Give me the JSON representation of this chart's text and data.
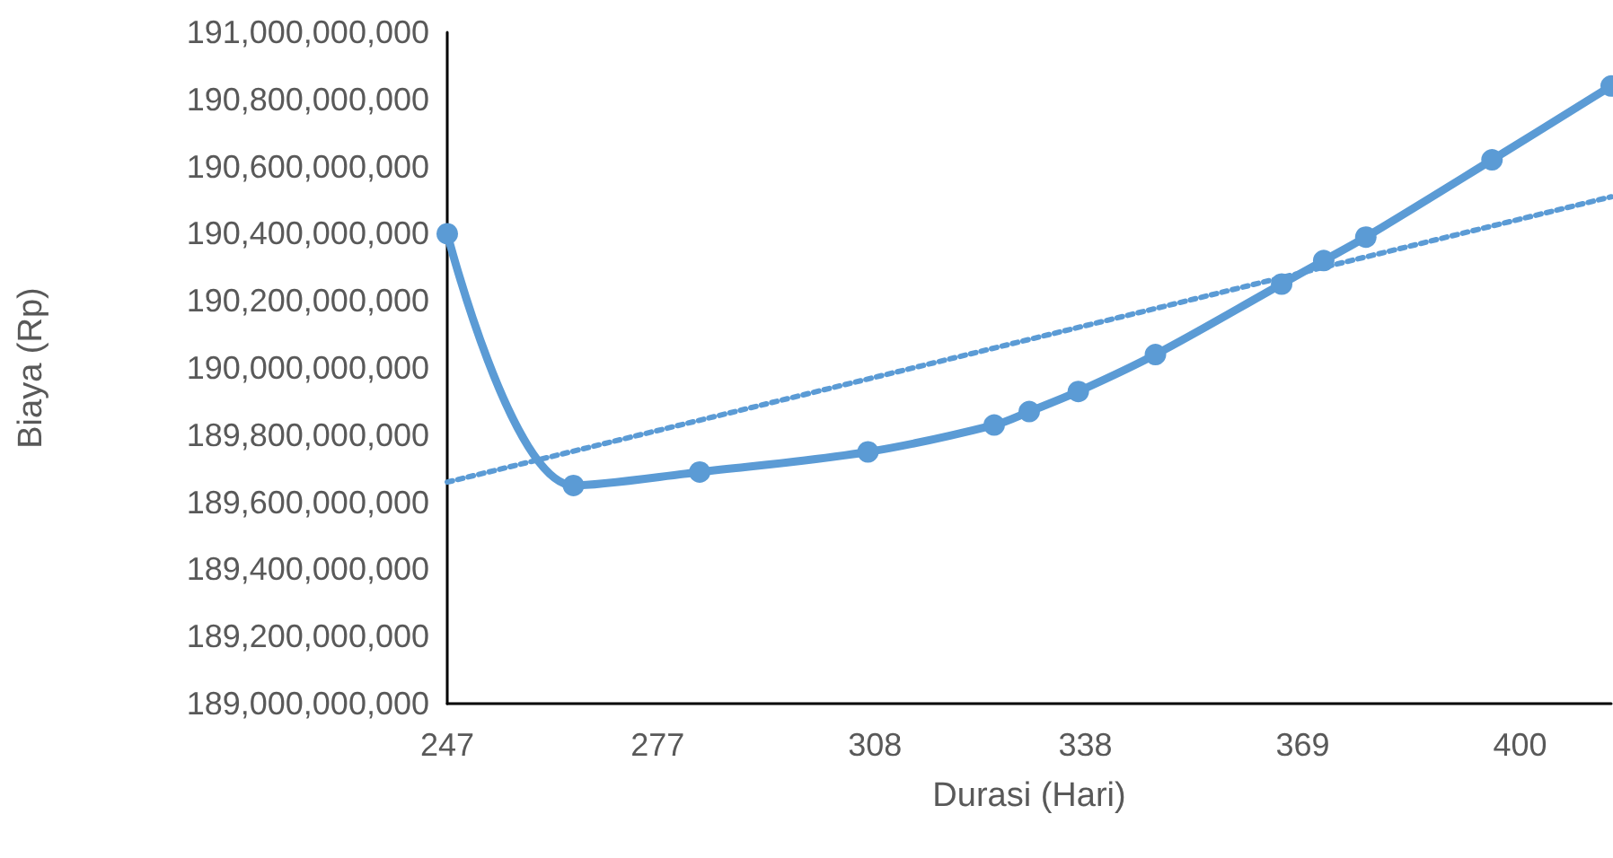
{
  "chart_data": {
    "type": "line",
    "xlabel": "Durasi (Hari)",
    "ylabel": "Biaya (Rp)",
    "xlim": [
      247,
      413
    ],
    "xticks": [
      247,
      277,
      308,
      338,
      369,
      400
    ],
    "ylim": [
      189000000000,
      191000000000
    ],
    "yticks": [
      {
        "value": 189000000000,
        "label": "189,000,000,000"
      },
      {
        "value": 189200000000,
        "label": "189,200,000,000"
      },
      {
        "value": 189400000000,
        "label": "189,400,000,000"
      },
      {
        "value": 189600000000,
        "label": "189,600,000,000"
      },
      {
        "value": 189800000000,
        "label": "189,800,000,000"
      },
      {
        "value": 190000000000,
        "label": "190,000,000,000"
      },
      {
        "value": 190200000000,
        "label": "190,200,000,000"
      },
      {
        "value": 190400000000,
        "label": "190,400,000,000"
      },
      {
        "value": 190600000000,
        "label": "190,600,000,000"
      },
      {
        "value": 190800000000,
        "label": "190,800,000,000"
      },
      {
        "value": 191000000000,
        "label": "191,000,000,000"
      }
    ],
    "grid": false,
    "series": [
      {
        "color": "#5b9bd5",
        "marker": "circle",
        "line_style": "solid",
        "x": [
          247,
          265,
          283,
          307,
          325,
          330,
          337,
          348,
          366,
          372,
          378,
          396,
          413
        ],
        "values": [
          190400000000,
          189650000000,
          189690000000,
          189750000000,
          189830000000,
          189870000000,
          189930000000,
          190040000000,
          190250000000,
          190320000000,
          190390000000,
          190620000000,
          190840000000
        ]
      },
      {
        "color": "#5b9bd5",
        "marker": "none",
        "line_style": "dotted",
        "x": [
          247,
          413
        ],
        "values": [
          189660000000,
          190510000000
        ]
      }
    ]
  }
}
